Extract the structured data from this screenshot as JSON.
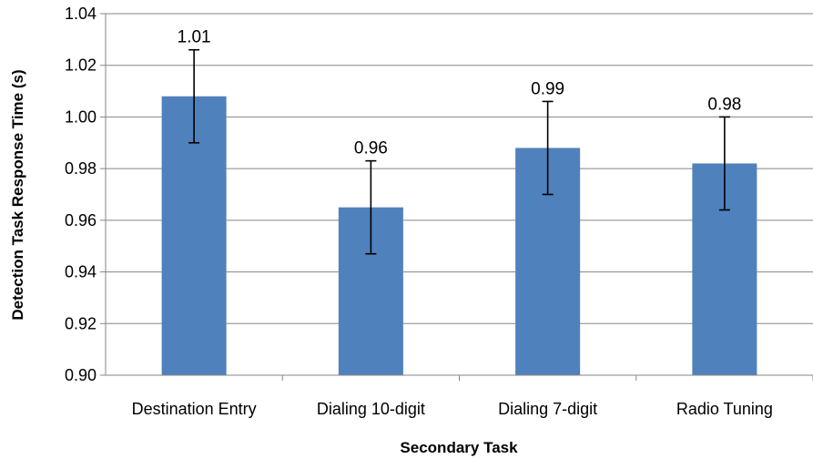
{
  "chart_data": {
    "type": "bar",
    "title": "",
    "xlabel": "Secondary Task",
    "ylabel": "Detection Task Response Time (s)",
    "categories": [
      "Destination Entry",
      "Dialing 10-digit",
      "Dialing 7-digit",
      "Radio Tuning"
    ],
    "values": [
      1.008,
      0.965,
      0.988,
      0.982
    ],
    "error_low": [
      0.99,
      0.947,
      0.97,
      0.964
    ],
    "error_high": [
      1.026,
      0.983,
      1.006,
      1.0
    ],
    "data_labels": [
      "1.01",
      "0.96",
      "0.99",
      "0.98"
    ],
    "ylim": [
      0.9,
      1.04
    ],
    "yticks": [
      0.9,
      0.92,
      0.94,
      0.96,
      0.98,
      1.0,
      1.02,
      1.04
    ],
    "ytick_labels": [
      "0.90",
      "0.92",
      "0.94",
      "0.96",
      "0.98",
      "1.00",
      "1.02",
      "1.04"
    ],
    "grid": true,
    "legend": "none",
    "bar_color": "#4F81BD",
    "grid_color": "#868686"
  }
}
